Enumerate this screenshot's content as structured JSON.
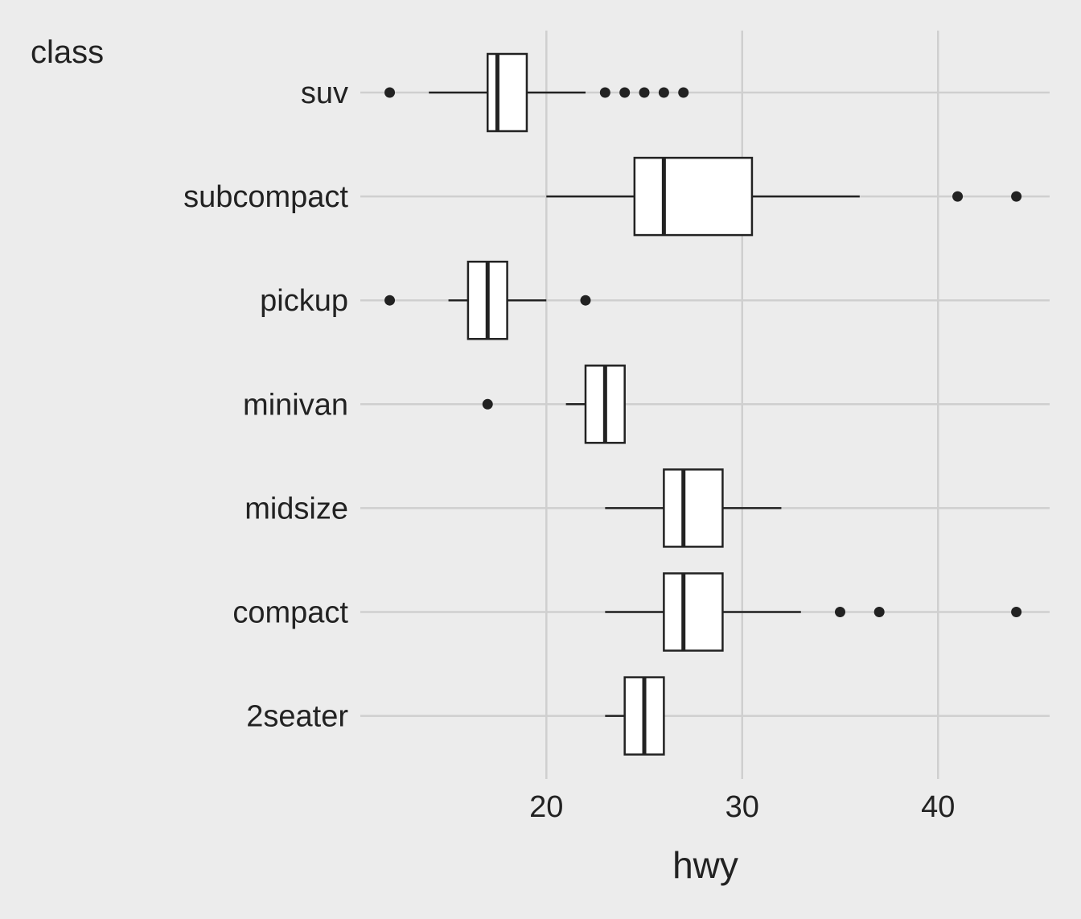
{
  "chart_data": {
    "type": "boxplot",
    "orientation": "horizontal",
    "xlabel": "hwy",
    "ylabel": "class",
    "xlim": [
      10.5,
      45.7
    ],
    "x_ticks": [
      20,
      30,
      40
    ],
    "grid": true,
    "colors": {
      "background": "#ececec",
      "grid": "#cfcfcf",
      "box_fill": "#ffffff",
      "stroke": "#222222"
    },
    "categories": [
      "suv",
      "subcompact",
      "pickup",
      "minivan",
      "midsize",
      "compact",
      "2seater"
    ],
    "boxes": [
      {
        "category": "suv",
        "whisker_low": 14,
        "q1": 17,
        "median": 17.5,
        "q3": 19,
        "whisker_high": 22,
        "outliers": [
          12,
          23,
          24,
          25,
          26,
          27
        ]
      },
      {
        "category": "subcompact",
        "whisker_low": 20,
        "q1": 24.5,
        "median": 26,
        "q3": 30.5,
        "whisker_high": 36,
        "outliers": [
          41,
          44
        ]
      },
      {
        "category": "pickup",
        "whisker_low": 15,
        "q1": 16,
        "median": 17,
        "q3": 18,
        "whisker_high": 20,
        "outliers": [
          12,
          22
        ]
      },
      {
        "category": "minivan",
        "whisker_low": 21,
        "q1": 22,
        "median": 23,
        "q3": 24,
        "whisker_high": 24,
        "outliers": [
          17
        ]
      },
      {
        "category": "midsize",
        "whisker_low": 23,
        "q1": 26,
        "median": 27,
        "q3": 29,
        "whisker_high": 32,
        "outliers": []
      },
      {
        "category": "compact",
        "whisker_low": 23,
        "q1": 26,
        "median": 27,
        "q3": 29,
        "whisker_high": 33,
        "outliers": [
          35,
          37,
          44
        ]
      },
      {
        "category": "2seater",
        "whisker_low": 23,
        "q1": 24,
        "median": 25,
        "q3": 26,
        "whisker_high": 26,
        "outliers": []
      }
    ]
  }
}
